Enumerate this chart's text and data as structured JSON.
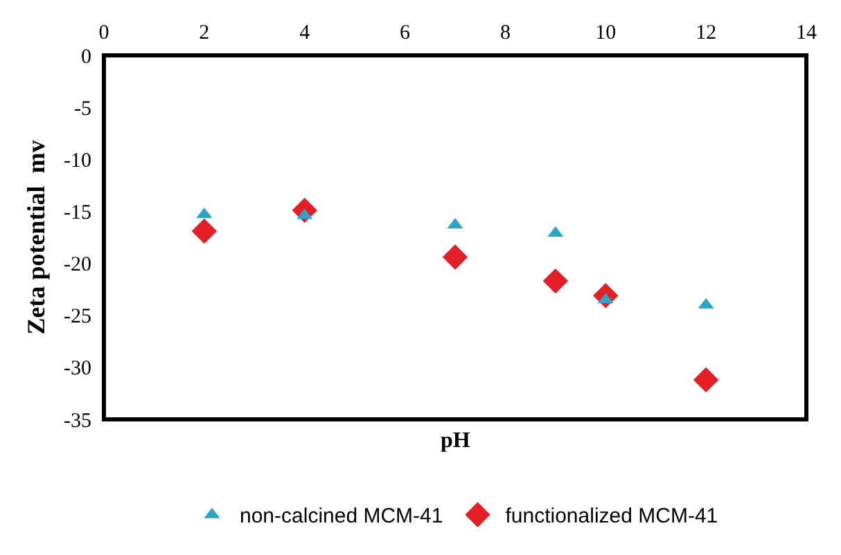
{
  "chart_data": {
    "type": "scatter",
    "xlabel": "pH",
    "ylabel": "Zeta potential  mv",
    "x": [
      2,
      4,
      7,
      9,
      10,
      12
    ],
    "series": [
      {
        "name": "non-calcined MCM-41",
        "color": "#2aa5c8",
        "marker": "triangle",
        "values": [
          -15.3,
          -15.4,
          -16.3,
          -17.1,
          -23.5,
          -24
        ]
      },
      {
        "name": "functionalized MCM-41",
        "color": "#e31e24",
        "marker": "diamond",
        "values": [
          -16.9,
          -14.9,
          -19.4,
          -21.7,
          -23.1,
          -31.2
        ]
      }
    ],
    "xlim": [
      0,
      14
    ],
    "xticks": [
      0,
      2,
      4,
      6,
      8,
      10,
      12,
      14
    ],
    "ylim": [
      -35,
      0
    ],
    "yticks": [
      0,
      -5,
      -10,
      -15,
      -20,
      -25,
      -30,
      -35
    ],
    "grid": false,
    "legend": "bottom"
  }
}
